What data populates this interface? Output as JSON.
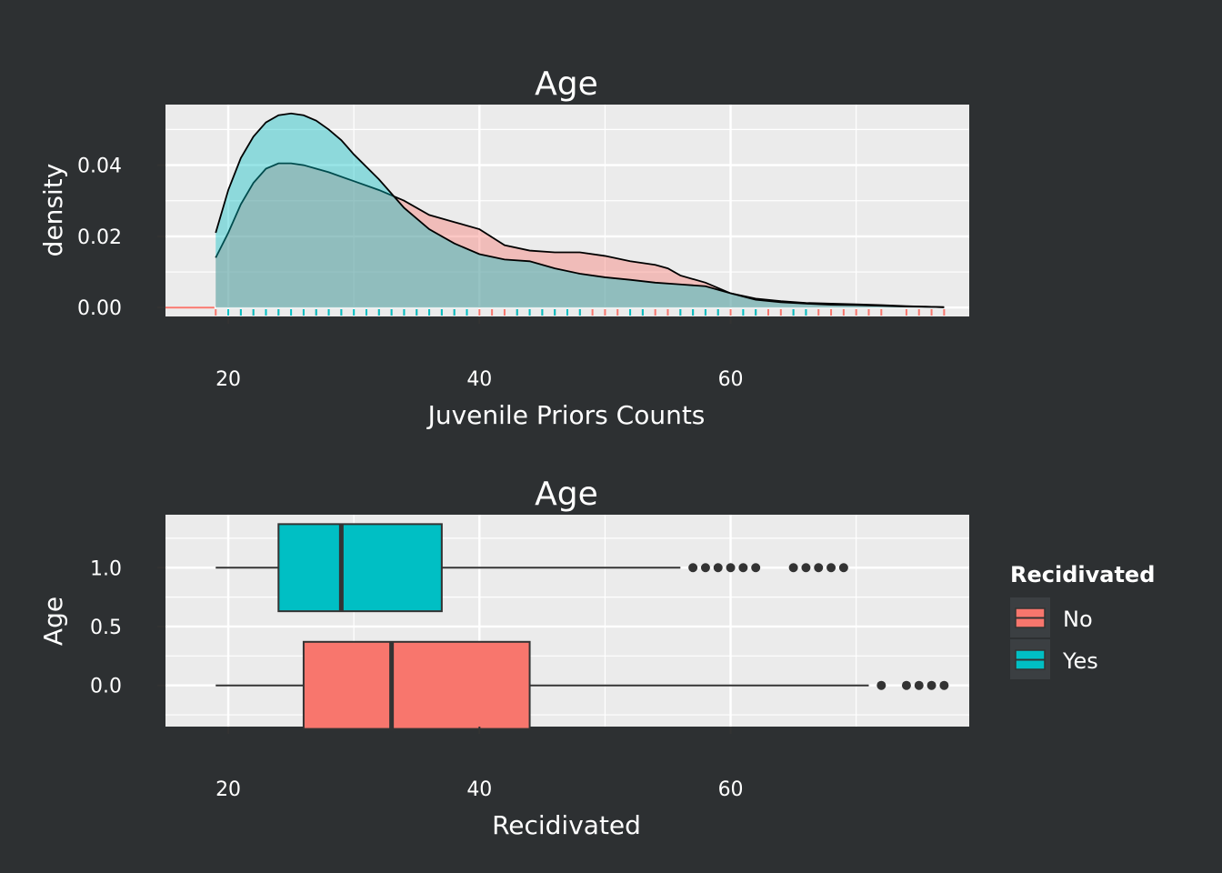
{
  "colors": {
    "background": "#2d3032",
    "panel": "#ebebeb",
    "grid_major": "#ffffff",
    "no": "#f8766d",
    "yes": "#00bfc4",
    "line": "#333333"
  },
  "legend": {
    "title": "Recidivated",
    "placement": "right",
    "entries": [
      {
        "label": "No",
        "color": "#f8766d"
      },
      {
        "label": "Yes",
        "color": "#00bfc4"
      }
    ]
  },
  "chart_data": [
    {
      "type": "area",
      "title": "Age",
      "xlabel": "Juvenile Priors Counts",
      "ylabel": "density",
      "xlim": [
        15,
        79
      ],
      "ylim": [
        -0.0025,
        0.057
      ],
      "x_ticks": [
        20,
        40,
        60
      ],
      "x_tick_labels": [
        "20",
        "40",
        "60"
      ],
      "y_ticks": [
        0,
        0.02,
        0.04
      ],
      "y_tick_labels": [
        "0.00",
        "0.02",
        "0.04"
      ],
      "grid": true,
      "series": [
        {
          "name": "No",
          "color": "#f8766d",
          "x": [
            19,
            20,
            21,
            22,
            23,
            24,
            25,
            26,
            27,
            28,
            30,
            32,
            34,
            36,
            38,
            40,
            42,
            44,
            46,
            48,
            50,
            52,
            54,
            55,
            56,
            58,
            60,
            62,
            64,
            66,
            68,
            70,
            72,
            74,
            76,
            77
          ],
          "y": [
            0.014,
            0.021,
            0.029,
            0.035,
            0.039,
            0.0405,
            0.0405,
            0.04,
            0.039,
            0.038,
            0.0355,
            0.033,
            0.03,
            0.026,
            0.024,
            0.022,
            0.0175,
            0.016,
            0.0155,
            0.0155,
            0.0145,
            0.013,
            0.012,
            0.011,
            0.009,
            0.007,
            0.004,
            0.0025,
            0.0018,
            0.0013,
            0.0011,
            0.0009,
            0.0007,
            0.0004,
            0.0002,
            0.0001
          ],
          "rug": [
            19,
            21,
            22,
            23,
            24,
            26,
            27,
            28,
            29,
            31,
            32,
            33,
            34,
            35,
            36,
            37,
            38,
            39,
            40,
            41,
            42,
            43,
            44,
            45,
            46,
            47,
            48,
            49,
            50,
            51,
            52,
            53,
            54,
            55,
            56,
            57,
            58,
            59,
            60,
            62,
            63,
            64,
            65,
            66,
            67,
            68,
            69,
            70,
            71,
            72,
            74,
            75,
            76,
            77
          ]
        },
        {
          "name": "Yes",
          "color": "#00bfc4",
          "x": [
            19,
            20,
            21,
            22,
            23,
            24,
            25,
            26,
            27,
            28,
            29,
            30,
            32,
            34,
            36,
            38,
            40,
            42,
            44,
            46,
            48,
            50,
            52,
            54,
            56,
            58,
            60,
            62,
            64,
            66,
            68,
            70,
            72,
            74,
            76,
            77
          ],
          "y": [
            0.021,
            0.033,
            0.042,
            0.048,
            0.052,
            0.054,
            0.0545,
            0.054,
            0.0525,
            0.05,
            0.047,
            0.043,
            0.036,
            0.028,
            0.022,
            0.018,
            0.015,
            0.0135,
            0.013,
            0.011,
            0.0095,
            0.0085,
            0.0078,
            0.007,
            0.0065,
            0.006,
            0.004,
            0.0022,
            0.0015,
            0.0011,
            0.0008,
            0.0007,
            0.0005,
            0.0003,
            0.0002,
            0.0001
          ],
          "rug": [
            20,
            21,
            22,
            23,
            24,
            25,
            26,
            27,
            28,
            29,
            30,
            31,
            32,
            33,
            34,
            35,
            36,
            37,
            38,
            39,
            43,
            44,
            45,
            46,
            47,
            48,
            52,
            53,
            56,
            57,
            58,
            59,
            61,
            62,
            65,
            66
          ]
        }
      ]
    },
    {
      "type": "boxplot",
      "title": "Age",
      "xlabel": "Recidivated",
      "ylabel": "Age",
      "xlim": [
        15,
        79
      ],
      "ylim": [
        -0.35,
        1.45
      ],
      "x_ticks": [
        20,
        40,
        60
      ],
      "x_tick_labels": [
        "20",
        "40",
        "60"
      ],
      "y_ticks": [
        0,
        0.5,
        1
      ],
      "y_tick_labels": [
        "0.0",
        "0.5",
        "1.0"
      ],
      "grid": true,
      "series": [
        {
          "name": "No",
          "color": "#f8766d",
          "position": 0,
          "whisker_low": 19,
          "q1": 26,
          "median": 33,
          "q3": 44,
          "whisker_high": 71,
          "outliers": [
            72,
            74,
            75,
            76,
            77
          ]
        },
        {
          "name": "Yes",
          "color": "#00bfc4",
          "position": 1,
          "whisker_low": 19,
          "q1": 24,
          "median": 29,
          "q3": 37,
          "whisker_high": 56,
          "outliers": [
            57,
            58,
            59,
            60,
            61,
            62,
            65,
            66,
            67,
            68,
            69
          ]
        }
      ]
    }
  ]
}
